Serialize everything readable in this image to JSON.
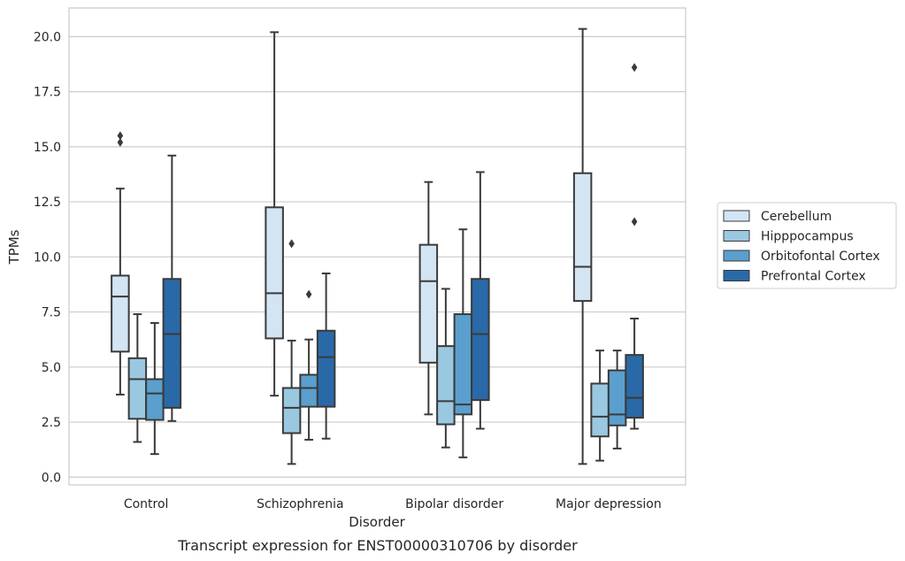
{
  "chart_data": {
    "type": "boxplot",
    "title": "Transcript expression for ENST00000310706 by disorder",
    "xlabel": "Disorder",
    "ylabel": "TPMs",
    "ylim": [
      -0.35,
      21.3
    ],
    "yticks": [
      "0.0",
      "2.5",
      "5.0",
      "7.5",
      "10.0",
      "12.5",
      "15.0",
      "17.5",
      "20.0"
    ],
    "grid": "horizontal",
    "legend_position": "right",
    "categories": [
      "Control",
      "Schizophrenia",
      "Bipolar disorder",
      "Major depression"
    ],
    "series": [
      {
        "name": "Cerebellum",
        "color": "#d3e4f3",
        "boxes": [
          {
            "whisker_low": 3.75,
            "q1": 5.7,
            "median": 8.2,
            "q3": 9.15,
            "whisker_high": 13.1,
            "outliers": [
              15.2,
              15.5
            ]
          },
          {
            "whisker_low": 3.7,
            "q1": 6.3,
            "median": 8.35,
            "q3": 12.25,
            "whisker_high": 20.2,
            "outliers": []
          },
          {
            "whisker_low": 2.85,
            "q1": 5.2,
            "median": 8.9,
            "q3": 10.55,
            "whisker_high": 13.4,
            "outliers": []
          },
          {
            "whisker_low": 0.6,
            "q1": 8.0,
            "median": 9.55,
            "q3": 13.8,
            "whisker_high": 20.35,
            "outliers": []
          }
        ]
      },
      {
        "name": "Hipppocampus",
        "color": "#9ac8e0",
        "boxes": [
          {
            "whisker_low": 1.6,
            "q1": 2.65,
            "median": 4.45,
            "q3": 5.4,
            "whisker_high": 7.4,
            "outliers": []
          },
          {
            "whisker_low": 0.6,
            "q1": 2.0,
            "median": 3.15,
            "q3": 4.05,
            "whisker_high": 6.2,
            "outliers": [
              10.6
            ]
          },
          {
            "whisker_low": 1.35,
            "q1": 2.4,
            "median": 3.45,
            "q3": 5.95,
            "whisker_high": 8.55,
            "outliers": []
          },
          {
            "whisker_low": 0.75,
            "q1": 1.85,
            "median": 2.75,
            "q3": 4.25,
            "whisker_high": 5.75,
            "outliers": []
          }
        ]
      },
      {
        "name": "Orbitofontal Cortex",
        "color": "#5a9fcd",
        "boxes": [
          {
            "whisker_low": 1.05,
            "q1": 2.6,
            "median": 3.8,
            "q3": 4.45,
            "whisker_high": 7.0,
            "outliers": []
          },
          {
            "whisker_low": 1.7,
            "q1": 3.2,
            "median": 4.05,
            "q3": 4.65,
            "whisker_high": 6.25,
            "outliers": [
              8.3
            ]
          },
          {
            "whisker_low": 0.9,
            "q1": 2.85,
            "median": 3.3,
            "q3": 7.4,
            "whisker_high": 11.25,
            "outliers": []
          },
          {
            "whisker_low": 1.3,
            "q1": 2.35,
            "median": 2.85,
            "q3": 4.85,
            "whisker_high": 5.75,
            "outliers": []
          }
        ]
      },
      {
        "name": "Prefrontal Cortex",
        "color": "#2a69a8",
        "boxes": [
          {
            "whisker_low": 2.55,
            "q1": 3.15,
            "median": 6.5,
            "q3": 9.0,
            "whisker_high": 14.6,
            "outliers": []
          },
          {
            "whisker_low": 1.75,
            "q1": 3.2,
            "median": 5.45,
            "q3": 6.65,
            "whisker_high": 9.25,
            "outliers": []
          },
          {
            "whisker_low": 2.2,
            "q1": 3.5,
            "median": 6.5,
            "q3": 9.0,
            "whisker_high": 13.85,
            "outliers": []
          },
          {
            "whisker_low": 2.2,
            "q1": 2.7,
            "median": 3.6,
            "q3": 5.55,
            "whisker_high": 7.2,
            "outliers": [
              11.6,
              18.6
            ]
          }
        ]
      }
    ]
  }
}
